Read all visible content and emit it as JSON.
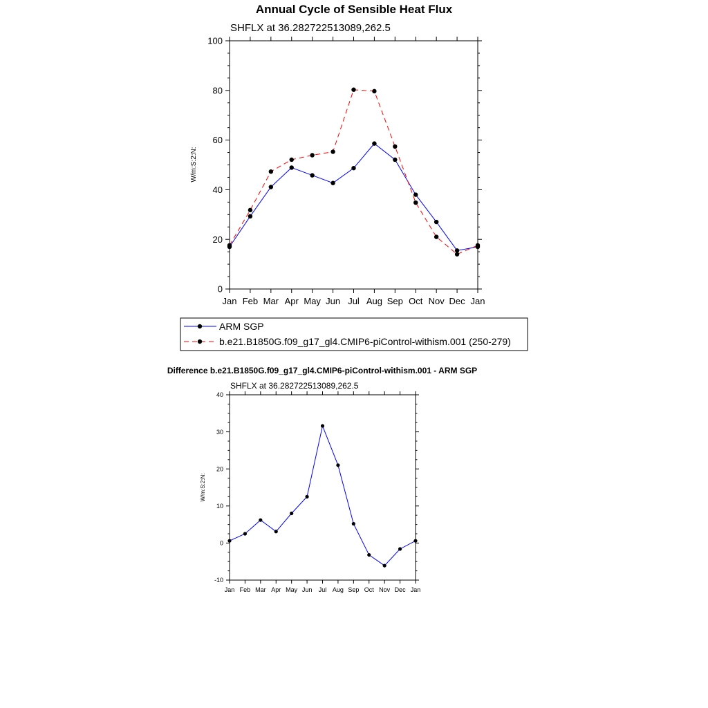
{
  "chart_data": [
    {
      "type": "line",
      "title": "Annual Cycle of Sensible Heat Flux",
      "subtitle": "SHFLX at 36.282722513089,262.5",
      "ylabel": "W/m:S:2:N:",
      "xlabel": "",
      "ylim": [
        0,
        100
      ],
      "yticks": [
        0,
        20,
        40,
        60,
        80,
        100
      ],
      "categories": [
        "Jan",
        "Feb",
        "Mar",
        "Apr",
        "May",
        "Jun",
        "Jul",
        "Aug",
        "Sep",
        "Oct",
        "Nov",
        "Dec",
        "Jan"
      ],
      "series": [
        {
          "name": "ARM SGP",
          "color": "#0000ff",
          "dash": "solid",
          "values": [
            17.0,
            29.3,
            41.1,
            48.9,
            45.8,
            42.7,
            48.7,
            58.6,
            52.1,
            38.0,
            27.0,
            15.5,
            17.0
          ]
        },
        {
          "name": "b.e21.B1850G.f09_g17_gl4.CMIP6-piControl-withism.001 (250-279)",
          "color": "#ff0000",
          "dash": "dashed",
          "values": [
            17.6,
            31.8,
            47.3,
            52.1,
            53.9,
            55.3,
            80.3,
            79.7,
            57.4,
            34.8,
            21.0,
            14.0,
            17.6
          ]
        }
      ]
    },
    {
      "type": "line",
      "title": "Difference b.e21.B1850G.f09_g17_gl4.CMIP6-piControl-withism.001 - ARM SGP",
      "subtitle": "SHFLX at 36.282722513089,262.5",
      "ylabel": "W/m:S:2:N:",
      "xlabel": "",
      "ylim": [
        -10,
        40
      ],
      "yticks": [
        -10,
        0,
        10,
        20,
        30,
        40
      ],
      "categories": [
        "Jan",
        "Feb",
        "Mar",
        "Apr",
        "May",
        "Jun",
        "Jul",
        "Aug",
        "Sep",
        "Oct",
        "Nov",
        "Dec",
        "Jan"
      ],
      "series": [
        {
          "name": "Difference",
          "color": "#0000ff",
          "dash": "solid",
          "values": [
            0.6,
            2.5,
            6.2,
            3.1,
            8.0,
            12.5,
            31.6,
            21.0,
            5.2,
            -3.2,
            -6.1,
            -1.6,
            0.6
          ]
        }
      ]
    }
  ]
}
